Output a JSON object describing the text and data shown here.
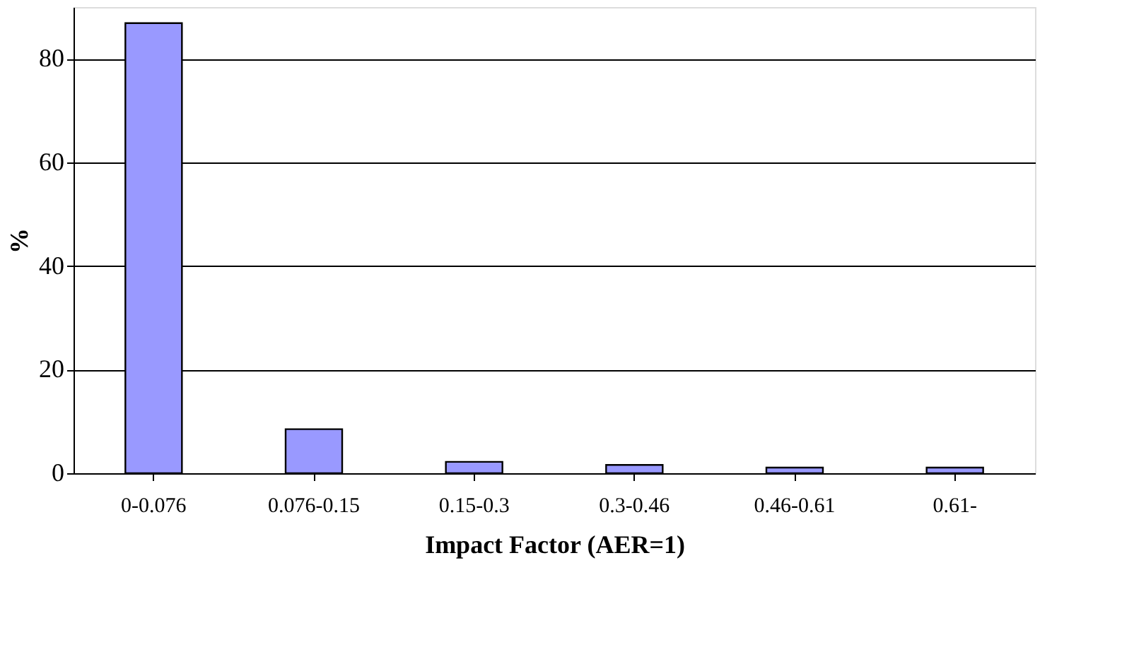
{
  "chart_data": {
    "type": "bar",
    "xlabel": "Impact Factor (AER=1)",
    "ylabel": "%",
    "categories": [
      "0-0.076",
      "0.076-0.15",
      "0.15-0.3",
      "0.3-0.46",
      "0.46-0.61",
      "0.61-"
    ],
    "values": [
      86.9,
      8.5,
      2.2,
      1.6,
      1.1,
      1.1
    ],
    "color": "#9999ff",
    "ylim": [
      0,
      90
    ],
    "yticks": [
      0,
      20,
      40,
      60,
      80
    ],
    "grid": "y"
  }
}
